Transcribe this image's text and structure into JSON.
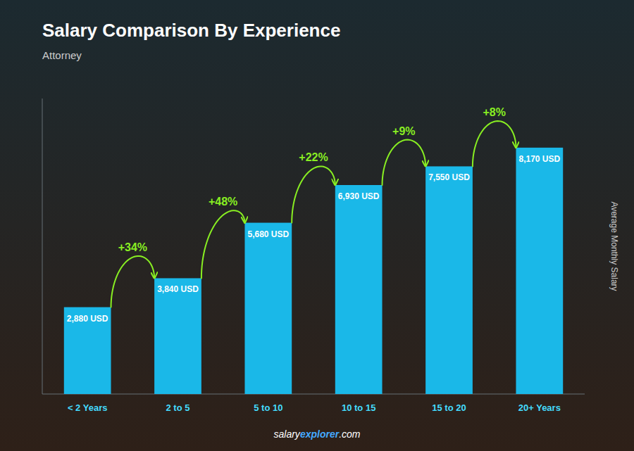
{
  "chart_data": {
    "type": "bar",
    "title": "Salary Comparison By Experience",
    "subtitle": "Attorney",
    "ylabel": "Average Monthly Salary",
    "categories": [
      "< 2 Years",
      "2 to 5",
      "5 to 10",
      "10 to 15",
      "15 to 20",
      "20+ Years"
    ],
    "values": [
      2880,
      3840,
      5680,
      6930,
      7550,
      8170
    ],
    "value_labels": [
      "2,880 USD",
      "3,840 USD",
      "5,680 USD",
      "6,930 USD",
      "7,550 USD",
      "8,170 USD"
    ],
    "data_labels": true,
    "color": "#1ab8e8",
    "ylim": [
      0,
      9800
    ],
    "tick_labels": "x",
    "grid": false,
    "annotations": [
      "+34%",
      "+48%",
      "+22%",
      "+9%",
      "+8%"
    ],
    "footer": [
      "salary",
      "explorer",
      ".com"
    ]
  }
}
